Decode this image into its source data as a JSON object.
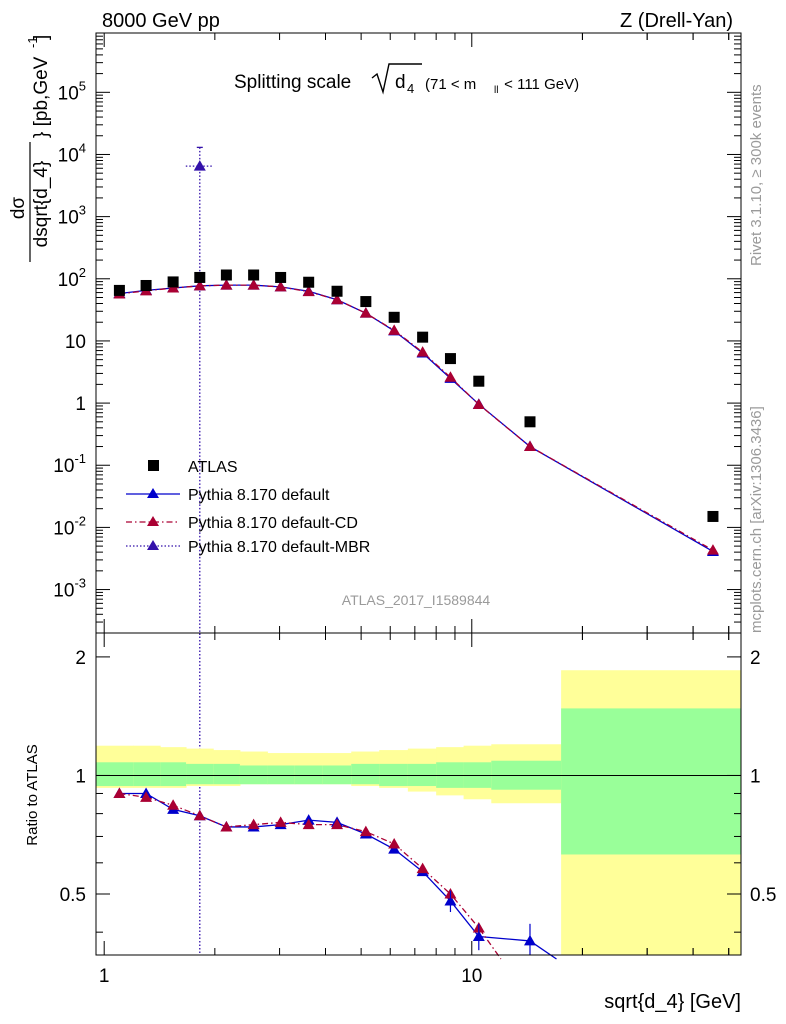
{
  "header": {
    "energy_label": "8000 GeV pp",
    "process_label": "Z (Drell-Yan)"
  },
  "side_labels": {
    "rivet": "Rivet 3.1.10, ≥ 300k events",
    "mcplots": "mcplots.cern.ch [arXiv:1306.3436]"
  },
  "analysis_id": "ATLAS_2017_I1589844",
  "chart_data": [
    {
      "type": "scatter",
      "title": "Splitting scale √d₄ (71 < m_ll < 111 GeV)",
      "title_parts": {
        "main": "Splitting scale",
        "var": "d",
        "sub": "4",
        "cut": "(71 < m",
        "cut_sub": "ll",
        "cut_end": " < 111 GeV)"
      },
      "xlabel": "sqrt{d_4} [GeV]",
      "ylabel": "dσ / dsqrt{d_4} [pb,GeV⁻¹]",
      "ylabel_parts": {
        "num": "dσ",
        "den": "dsqrt{d_4}",
        "units": "} [pb,GeV",
        "units_sup": "-1",
        "units_end": "]"
      },
      "xscale": "log",
      "yscale": "log",
      "xlim": [
        0.95,
        54
      ],
      "ylim": [
        0.0002,
        900000
      ],
      "x_tick_labels": [
        "1",
        "10"
      ],
      "y_tick_labels": [
        {
          "base": "10",
          "exp": "5"
        },
        {
          "base": "10",
          "exp": "4"
        },
        {
          "base": "10",
          "exp": "3"
        },
        {
          "base": "10",
          "exp": "2"
        },
        {
          "base": "10",
          "exp": ""
        },
        {
          "base": "1",
          "exp": ""
        },
        {
          "base": "10",
          "exp": "-1"
        },
        {
          "base": "10",
          "exp": "-2"
        },
        {
          "base": "10",
          "exp": "-3"
        }
      ],
      "legend_position": "bottom-left",
      "series": [
        {
          "name": "ATLAS",
          "style": "square-marker",
          "color": "#000000",
          "x": [
            1.1,
            1.3,
            1.54,
            1.82,
            2.15,
            2.55,
            3.02,
            3.6,
            4.3,
            5.15,
            6.15,
            7.35,
            8.75,
            10.45,
            14.4,
            45.3
          ],
          "y": [
            65,
            78,
            89,
            105,
            115,
            115,
            105,
            88,
            63,
            43,
            24,
            11.5,
            5.2,
            2.25,
            0.5,
            0.015
          ]
        },
        {
          "name": "Pythia 8.170 default",
          "style": "solid-line-triangle",
          "color": "#0000cc",
          "x": [
            1.1,
            1.3,
            1.54,
            1.82,
            2.15,
            2.55,
            3.02,
            3.6,
            4.3,
            5.15,
            6.15,
            7.35,
            8.75,
            10.45,
            14.4,
            45.3
          ],
          "y": [
            58,
            65,
            71,
            77,
            79,
            79,
            74,
            63,
            46,
            28,
            14.5,
            6.4,
            2.5,
            0.96,
            0.2,
            0.0041
          ]
        },
        {
          "name": "Pythia 8.170 default-CD",
          "style": "dashdot-line-triangle",
          "color": "#aa0033",
          "x": [
            1.1,
            1.3,
            1.54,
            1.82,
            2.15,
            2.55,
            3.02,
            3.6,
            4.3,
            5.15,
            6.15,
            7.35,
            8.75,
            10.45,
            14.4,
            45.3
          ],
          "y": [
            57,
            64,
            71,
            77,
            79,
            79,
            74,
            62,
            46,
            28,
            14.8,
            6.6,
            2.6,
            0.95,
            0.2,
            0.0043
          ]
        },
        {
          "name": "Pythia 8.170 default-MBR",
          "style": "dotted-line-triangle",
          "color": "#3311aa",
          "x": [
            1.82
          ],
          "y": [
            6500
          ],
          "yerr_up": [
            13000
          ],
          "yerr_down": [
            0.0002
          ]
        }
      ]
    },
    {
      "type": "line",
      "ylabel": "Ratio to ATLAS",
      "xlabel": "sqrt{d_4} [GeV]",
      "xscale": "log",
      "xlim": [
        0.95,
        54
      ],
      "ylim": [
        0.35,
        2.3
      ],
      "y_tick_labels": [
        "2",
        "1",
        "0.5"
      ],
      "y_ticks": [
        2,
        1,
        0.5
      ],
      "bands": {
        "edges": [
          0.95,
          1.2,
          1.42,
          1.67,
          1.98,
          2.34,
          2.78,
          3.3,
          3.92,
          4.7,
          5.6,
          6.7,
          8.0,
          9.5,
          11.3,
          17.5,
          54
        ],
        "yellow_up": [
          1.19,
          1.19,
          1.18,
          1.17,
          1.16,
          1.15,
          1.14,
          1.14,
          1.14,
          1.15,
          1.16,
          1.17,
          1.18,
          1.19,
          1.2,
          1.85
        ],
        "yellow_down": [
          0.93,
          0.93,
          0.93,
          0.94,
          0.94,
          0.95,
          0.95,
          0.95,
          0.95,
          0.94,
          0.93,
          0.91,
          0.89,
          0.87,
          0.85,
          0.34
        ],
        "green_up": [
          1.08,
          1.08,
          1.08,
          1.07,
          1.07,
          1.06,
          1.06,
          1.06,
          1.06,
          1.07,
          1.07,
          1.07,
          1.08,
          1.08,
          1.09,
          1.48
        ],
        "green_down": [
          0.94,
          0.94,
          0.94,
          0.95,
          0.95,
          0.95,
          0.95,
          0.95,
          0.95,
          0.95,
          0.94,
          0.94,
          0.93,
          0.93,
          0.92,
          0.63
        ]
      },
      "series": [
        {
          "name": "Pythia 8.170 default",
          "color": "#0000cc",
          "x": [
            1.1,
            1.3,
            1.54,
            1.82,
            2.15,
            2.55,
            3.02,
            3.6,
            4.3,
            5.15,
            6.15,
            7.35,
            8.75,
            10.45,
            14.4
          ],
          "y": [
            0.9,
            0.9,
            0.82,
            0.79,
            0.74,
            0.74,
            0.75,
            0.77,
            0.76,
            0.71,
            0.65,
            0.57,
            0.48,
            0.39,
            0.38
          ]
        },
        {
          "name": "Pythia 8.170 default-CD",
          "color": "#aa0033",
          "x": [
            1.1,
            1.3,
            1.54,
            1.82,
            2.15,
            2.55,
            3.02,
            3.6,
            4.3,
            5.15,
            6.15,
            7.35,
            8.75,
            10.45
          ],
          "y": [
            0.9,
            0.88,
            0.84,
            0.79,
            0.74,
            0.75,
            0.76,
            0.75,
            0.75,
            0.72,
            0.67,
            0.58,
            0.5,
            0.41
          ]
        }
      ]
    }
  ]
}
